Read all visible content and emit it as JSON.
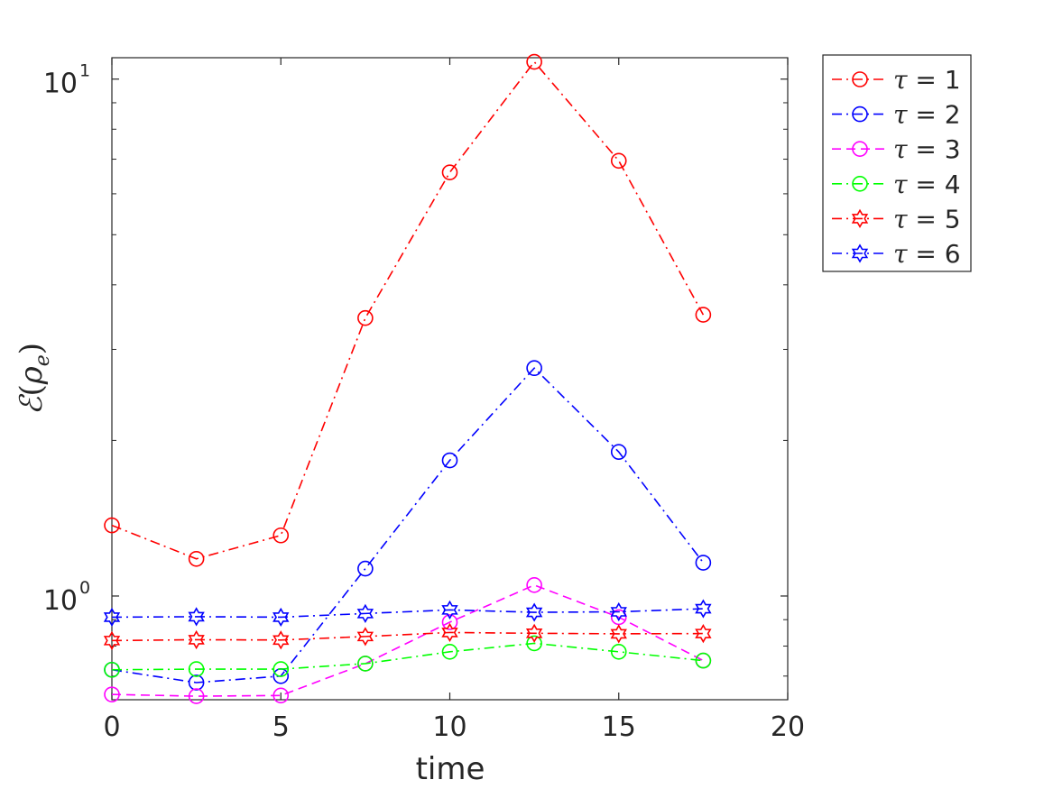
{
  "chart_data": {
    "type": "line",
    "xlabel": "time",
    "ylabel": "ℰ(ρe)",
    "ylabel_parts": {
      "script": "ℰ",
      "open": "(",
      "rho": "ρ",
      "sub": "e",
      "close": ")"
    },
    "xlim": [
      0,
      20
    ],
    "ylim": [
      0.63,
      11.0
    ],
    "yscale": "log",
    "grid": false,
    "legend_position": "outside-top-right",
    "x_ticks": [
      {
        "value": 0,
        "label": "0"
      },
      {
        "value": 5,
        "label": "5"
      },
      {
        "value": 10,
        "label": "10"
      },
      {
        "value": 15,
        "label": "15"
      },
      {
        "value": 20,
        "label": "20"
      }
    ],
    "y_ticks": [
      {
        "value": 1,
        "base": "10",
        "exp": "0"
      },
      {
        "value": 10,
        "base": "10",
        "exp": "1"
      }
    ],
    "x": [
      0,
      2.5,
      5,
      7.5,
      10,
      12.5,
      15,
      17.5
    ],
    "series": [
      {
        "name": "τ = 1",
        "tau": "τ",
        "eq": " = 1",
        "color": "#ff0000",
        "marker": "circle",
        "dash": "dashdot",
        "values": [
          1.37,
          1.18,
          1.31,
          3.45,
          6.6,
          10.8,
          6.95,
          3.5
        ]
      },
      {
        "name": "τ = 2",
        "tau": "τ",
        "eq": " = 2",
        "color": "#0000ff",
        "marker": "circle",
        "dash": "dashdot",
        "values": [
          0.72,
          0.68,
          0.7,
          1.13,
          1.83,
          2.76,
          1.9,
          1.16
        ]
      },
      {
        "name": "τ = 3",
        "tau": "τ",
        "eq": " = 3",
        "color": "#ff00ff",
        "marker": "circle",
        "dash": "dashed",
        "values": [
          0.645,
          0.64,
          0.642,
          0.74,
          0.89,
          1.05,
          0.91,
          0.75
        ]
      },
      {
        "name": "τ = 4",
        "tau": "τ",
        "eq": " = 4",
        "color": "#00ff00",
        "marker": "circle",
        "dash": "dashdot",
        "values": [
          0.72,
          0.722,
          0.722,
          0.74,
          0.78,
          0.81,
          0.78,
          0.75
        ]
      },
      {
        "name": "τ = 5",
        "tau": "τ",
        "eq": " = 5",
        "color": "#ff0000",
        "marker": "hexagram",
        "dash": "dashdot",
        "values": [
          0.82,
          0.823,
          0.822,
          0.835,
          0.85,
          0.847,
          0.845,
          0.846
        ]
      },
      {
        "name": "τ = 6",
        "tau": "τ",
        "eq": " = 6",
        "color": "#0000ff",
        "marker": "hexagram",
        "dash": "dashdot",
        "values": [
          0.91,
          0.912,
          0.91,
          0.925,
          0.94,
          0.93,
          0.932,
          0.945
        ]
      }
    ]
  }
}
